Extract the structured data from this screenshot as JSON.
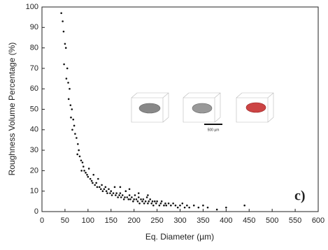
{
  "chart_data": {
    "type": "scatter",
    "x_label": "Eq. Diameter (µm)",
    "y_label": "Roughness Volume Percentage (%)",
    "annotation": "c)",
    "scale_bar_label": "500 µm",
    "color": "#111111",
    "xlim": [
      0,
      600
    ],
    "xticks": [
      0,
      50,
      100,
      150,
      200,
      250,
      300,
      350,
      400,
      450,
      500,
      550,
      600
    ],
    "ylim": [
      0,
      100
    ],
    "yticks": [
      0,
      10,
      20,
      30,
      40,
      50,
      60,
      70,
      80,
      90,
      100
    ],
    "grid": false,
    "x": [
      42,
      45,
      47,
      50,
      52,
      48,
      55,
      53,
      57,
      60,
      58,
      62,
      65,
      63,
      68,
      70,
      72,
      66,
      75,
      78,
      80,
      77,
      82,
      85,
      88,
      90,
      86,
      92,
      95,
      98,
      100,
      102,
      105,
      108,
      110,
      112,
      115,
      118,
      120,
      122,
      125,
      128,
      130,
      132,
      135,
      138,
      140,
      142,
      145,
      148,
      150,
      152,
      155,
      158,
      160,
      162,
      165,
      168,
      170,
      172,
      175,
      178,
      180,
      182,
      185,
      188,
      190,
      192,
      195,
      198,
      200,
      202,
      205,
      208,
      210,
      212,
      215,
      218,
      220,
      222,
      225,
      228,
      230,
      232,
      235,
      238,
      240,
      242,
      245,
      248,
      250,
      255,
      258,
      260,
      265,
      268,
      270,
      275,
      280,
      285,
      290,
      295,
      300,
      305,
      310,
      315,
      320,
      330,
      340,
      350,
      360,
      380,
      400,
      440,
      190,
      210,
      170,
      230
    ],
    "y": [
      97,
      93,
      88,
      82,
      80,
      72,
      70,
      65,
      63,
      60,
      55,
      52,
      50,
      46,
      45,
      42,
      38,
      40,
      36,
      33,
      30,
      28,
      27,
      25,
      24,
      22,
      20,
      20,
      19,
      18,
      17,
      21,
      16,
      15,
      14,
      18,
      13,
      14,
      12,
      16,
      12,
      11,
      13,
      10,
      11,
      12,
      10,
      9,
      11,
      9,
      10,
      8,
      9,
      12,
      8,
      9,
      7,
      8,
      9,
      7,
      8,
      6,
      7,
      10,
      7,
      6,
      8,
      6,
      7,
      5,
      6,
      8,
      6,
      5,
      7,
      4,
      6,
      5,
      6,
      4,
      5,
      7,
      4,
      5,
      6,
      4,
      5,
      3,
      5,
      4,
      5,
      3,
      4,
      5,
      3,
      4,
      3,
      4,
      3,
      4,
      3,
      2,
      3,
      4,
      2,
      3,
      2,
      3,
      2,
      3,
      2,
      1,
      2,
      3,
      11,
      9,
      12,
      8
    ]
  }
}
